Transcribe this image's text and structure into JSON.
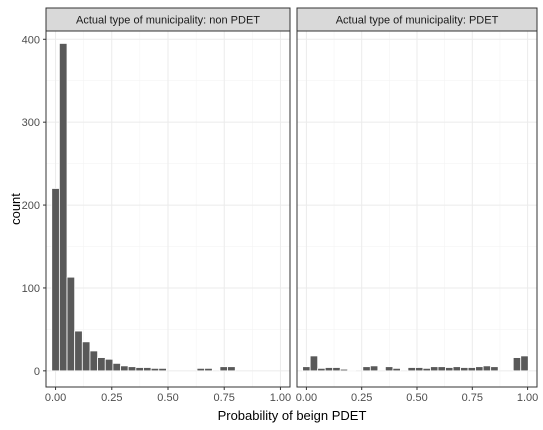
{
  "chart_data": {
    "type": "bar",
    "xlabel": "Probability of beign PDET",
    "ylabel": "count",
    "xlim": [
      -0.0425,
      1.0425
    ],
    "ylim": [
      -19.5,
      410
    ],
    "x_ticks": [
      0.0,
      0.25,
      0.5,
      0.75,
      1.0
    ],
    "x_tick_labels": [
      "0.00",
      "0.25",
      "0.50",
      "0.75",
      "1.00"
    ],
    "y_ticks": [
      0,
      100,
      200,
      300,
      400
    ],
    "y_tick_labels": [
      "0",
      "100",
      "200",
      "300",
      "400"
    ],
    "bin_width": 0.034,
    "bin_centers": [
      0.0,
      0.034,
      0.068,
      0.102,
      0.136,
      0.17,
      0.204,
      0.238,
      0.272,
      0.306,
      0.34,
      0.374,
      0.408,
      0.442,
      0.476,
      0.51,
      0.544,
      0.578,
      0.612,
      0.646,
      0.68,
      0.714,
      0.748,
      0.782,
      0.816,
      0.85,
      0.884,
      0.918,
      0.952,
      0.986
    ],
    "grid": true,
    "legend": "none",
    "bar_color": "#595959",
    "panels": [
      {
        "name": "Actual type of municipality: non PDET",
        "values": [
          220,
          395,
          113,
          48,
          35,
          24,
          16,
          14,
          9,
          6,
          5,
          4,
          4,
          3,
          3,
          0,
          0,
          0,
          0,
          3,
          3,
          0,
          5,
          5,
          0,
          0,
          0,
          0,
          0,
          0
        ]
      },
      {
        "name": "Actual type of municipality: PDET",
        "values": [
          5,
          18,
          3,
          4,
          4,
          2,
          1,
          0,
          5,
          6,
          0,
          5,
          3,
          0,
          4,
          4,
          3,
          5,
          5,
          4,
          5,
          4,
          4,
          5,
          6,
          5,
          0,
          0,
          16,
          18
        ]
      }
    ]
  }
}
